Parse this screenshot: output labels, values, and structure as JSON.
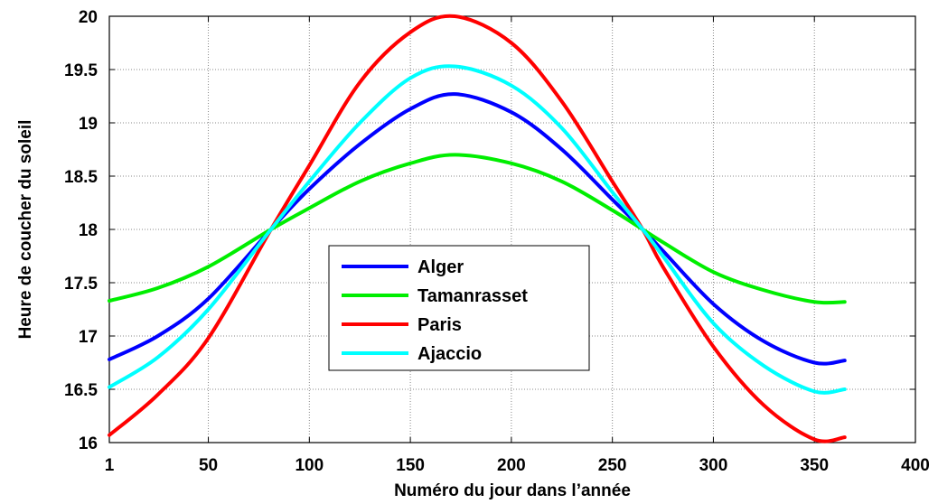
{
  "chart_data": {
    "type": "line",
    "title": "",
    "xlabel": "Numéro du jour dans l’année",
    "ylabel": "Heure de coucher du soleil",
    "xlim": [
      1,
      400
    ],
    "ylim": [
      16,
      20
    ],
    "xticks": [
      1,
      50,
      100,
      150,
      200,
      250,
      300,
      350,
      400
    ],
    "xtick_labels": [
      "1",
      "50",
      "100",
      "150",
      "200",
      "250",
      "300",
      "350",
      "400"
    ],
    "yticks": [
      16,
      16.5,
      17,
      17.5,
      18,
      18.5,
      19,
      19.5,
      20
    ],
    "ytick_labels": [
      "16",
      "16.5",
      "17",
      "17.5",
      "18",
      "18.5",
      "19",
      "19.5",
      "20"
    ],
    "grid": true,
    "legend_position": "center",
    "x": [
      1,
      25,
      50,
      81,
      100,
      125,
      150,
      172,
      200,
      225,
      250,
      265,
      275,
      300,
      325,
      350,
      365
    ],
    "series": [
      {
        "name": "Alger",
        "color": "#0000ff",
        "values": [
          16.78,
          17.0,
          17.35,
          18.0,
          18.38,
          18.8,
          19.13,
          19.27,
          19.1,
          18.75,
          18.28,
          18.0,
          17.8,
          17.3,
          16.95,
          16.75,
          16.77
        ]
      },
      {
        "name": "Tamanrasset",
        "color": "#00ee00",
        "values": [
          17.33,
          17.45,
          17.65,
          18.0,
          18.2,
          18.45,
          18.62,
          18.7,
          18.62,
          18.45,
          18.18,
          18.0,
          17.88,
          17.6,
          17.43,
          17.32,
          17.32
        ]
      },
      {
        "name": "Paris",
        "color": "#ff0000",
        "values": [
          16.07,
          16.45,
          16.98,
          18.0,
          18.6,
          19.38,
          19.85,
          20.0,
          19.75,
          19.2,
          18.45,
          18.0,
          17.65,
          16.9,
          16.35,
          16.03,
          16.05
        ]
      },
      {
        "name": "Ajaccio",
        "color": "#00ffff",
        "values": [
          16.52,
          16.8,
          17.25,
          18.0,
          18.45,
          19.0,
          19.42,
          19.53,
          19.35,
          18.95,
          18.35,
          18.0,
          17.75,
          17.12,
          16.72,
          16.48,
          16.5
        ]
      }
    ]
  }
}
